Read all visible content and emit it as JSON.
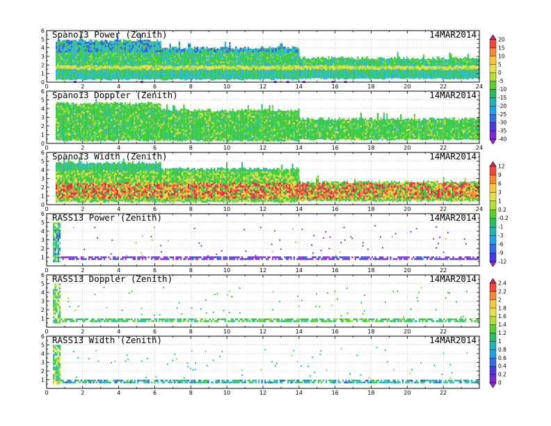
{
  "chart_data": [
    {
      "type": "heatmap",
      "title": "Spano13 Power (Zenith)",
      "date": "14MAR2014",
      "x_range": [
        0,
        24
      ],
      "y_range": [
        0,
        6
      ],
      "x_ticks": [
        "0",
        "2",
        "4",
        "6",
        "8",
        "10",
        "12",
        "14",
        "16",
        "18",
        "20",
        "22",
        "24"
      ],
      "y_ticks": [
        "0",
        "1",
        "2",
        "3",
        "4",
        "5",
        "6"
      ],
      "grid": "dotted",
      "colorbar": "cb1",
      "colorbar_label_top": "20",
      "bands": [
        {
          "x0": 0.5,
          "x1": 6.3,
          "ylo": 0.4,
          "yhi": 5.0
        },
        {
          "x0": 6.3,
          "x1": 14.0,
          "ylo": 0.4,
          "yhi": 4.2
        },
        {
          "x0": 14.0,
          "x1": 24.0,
          "ylo": 0.5,
          "yhi": 3.0
        }
      ],
      "features": "noise-floor band near 1.8 km (yellow), weaker echoes above (cyan/blue)"
    },
    {
      "type": "heatmap",
      "title": "Spano13 Doppler (Zenith)",
      "date": "14MAR2014",
      "x_range": [
        0,
        24
      ],
      "y_range": [
        0,
        6
      ],
      "x_ticks": [
        "0",
        "2",
        "4",
        "6",
        "8",
        "10",
        "12",
        "14",
        "16",
        "18",
        "20",
        "22",
        "24"
      ],
      "y_ticks": [
        "0",
        "1",
        "2",
        "3",
        "4",
        "5",
        "6"
      ],
      "grid": "dotted",
      "colorbar": "cb1",
      "bands": [
        {
          "x0": 0.5,
          "x1": 6.3,
          "ylo": 0.4,
          "yhi": 4.8
        },
        {
          "x0": 6.3,
          "x1": 14.0,
          "ylo": 0.4,
          "yhi": 4.0
        },
        {
          "x0": 14.0,
          "x1": 24.0,
          "ylo": 0.5,
          "yhi": 3.0
        }
      ],
      "features": "mostly green values with scattered yellow"
    },
    {
      "type": "heatmap",
      "title": "Spano13 Width (Zenith)",
      "date": "14MAR2014",
      "x_range": [
        0,
        24
      ],
      "y_range": [
        0,
        6
      ],
      "x_ticks": [
        "0",
        "2",
        "4",
        "6",
        "8",
        "10",
        "12",
        "14",
        "16",
        "18",
        "20",
        "22",
        "24"
      ],
      "y_ticks": [
        "0",
        "1",
        "2",
        "3",
        "4",
        "5",
        "6"
      ],
      "grid": "dotted",
      "colorbar": "cb2",
      "bands": [
        {
          "x0": 0.5,
          "x1": 6.3,
          "ylo": 0.4,
          "yhi": 5.0
        },
        {
          "x0": 6.3,
          "x1": 14.0,
          "ylo": 0.4,
          "yhi": 4.3
        },
        {
          "x0": 14.0,
          "x1": 24.0,
          "ylo": 0.5,
          "yhi": 2.8
        }
      ],
      "features": "red/orange speckle between 0.8 and 2.6 km, green above"
    },
    {
      "type": "heatmap",
      "title": "RASS13 Power (Zenith)",
      "date": "14MAR2014",
      "x_range": [
        0,
        24
      ],
      "y_range": [
        0,
        6
      ],
      "x_ticks": [
        "0",
        "2",
        "4",
        "6",
        "8",
        "10",
        "12",
        "14",
        "16",
        "18",
        "20",
        "22"
      ],
      "y_ticks": [
        "1",
        "2",
        "3",
        "4",
        "5",
        "6"
      ],
      "grid": "dotted",
      "colorbar": "cb2",
      "features": "dense purple strip near 0.8-1.1 km, column of cyan/green near x=0.5"
    },
    {
      "type": "heatmap",
      "title": "RASS13 Doppler (Zenith)",
      "date": "14MAR2014",
      "x_range": [
        0,
        24
      ],
      "y_range": [
        0,
        6
      ],
      "x_ticks": [
        "0",
        "2",
        "4",
        "6",
        "8",
        "10",
        "12",
        "14",
        "16",
        "18",
        "20",
        "22"
      ],
      "y_ticks": [
        "1",
        "2",
        "3",
        "4",
        "5",
        "6"
      ],
      "grid": "dotted",
      "colorbar": "cb3",
      "features": "green strip near 0.8-1.0 km, column near x=0.5"
    },
    {
      "type": "heatmap",
      "title": "RASS13 Width (Zenith)",
      "date": "14MAR2014",
      "x_range": [
        0,
        24
      ],
      "y_range": [
        0,
        6
      ],
      "x_ticks": [
        "0",
        "2",
        "4",
        "6",
        "8",
        "10",
        "12",
        "14",
        "16",
        "18",
        "20",
        "22"
      ],
      "y_ticks": [
        "1",
        "2",
        "3",
        "4",
        "5",
        "6"
      ],
      "grid": "dotted",
      "colorbar": "cb3",
      "features": "cyan/green strip near 0.6-1.0 km, column near x=0.5"
    }
  ],
  "colorbars": {
    "cb1": {
      "labels": [
        "20",
        "15",
        "10",
        "5",
        "0",
        "-5",
        "-10",
        "-15",
        "-20",
        "-25",
        "-30",
        "-35",
        "-40"
      ],
      "colors": [
        "#d8206e",
        "#ee4a3a",
        "#f2883a",
        "#f5c842",
        "#e8e04a",
        "#b4dc3c",
        "#5ccc32",
        "#2dba62",
        "#22b4b4",
        "#22a2e0",
        "#3a6ae2",
        "#4a3ad8",
        "#7a2ad2",
        "#9c28d0"
      ]
    },
    "cb2": {
      "labels": [
        "12",
        "9",
        "6",
        "3",
        "1",
        "0.2",
        "-0.2",
        "-1",
        "-3",
        "-6",
        "-9",
        "-12"
      ],
      "colors": [
        "#d8206e",
        "#ee4a3a",
        "#f2883a",
        "#f5c842",
        "#e8e04a",
        "#b4dc3c",
        "#5ccc32",
        "#2dba62",
        "#22b4b4",
        "#22a2e0",
        "#3a6ae2",
        "#4a3ad8",
        "#9c28d0"
      ]
    },
    "cb3": {
      "labels": [
        "2.4",
        "2.2",
        "2",
        "1.8",
        "1.6",
        "1.4",
        "1.2",
        "1",
        "0.8",
        "0.6",
        "0.4",
        "0.2",
        "0"
      ],
      "colors": [
        "#d8206e",
        "#ee4a3a",
        "#f2883a",
        "#f5c842",
        "#e8e04a",
        "#b4dc3c",
        "#5ccc32",
        "#2dba62",
        "#22b4b4",
        "#22a2e0",
        "#3a6ae2",
        "#4a3ad8",
        "#7a2ad2",
        "#9c28d0"
      ]
    }
  },
  "palette": {
    "purple": "#8c2cd4",
    "blue": "#2a58e0",
    "cyan": "#22b8c4",
    "green": "#34c83c",
    "lime": "#8cd83c",
    "yellow": "#e8dc3c",
    "orange": "#f08c2c",
    "red": "#dc2840"
  }
}
